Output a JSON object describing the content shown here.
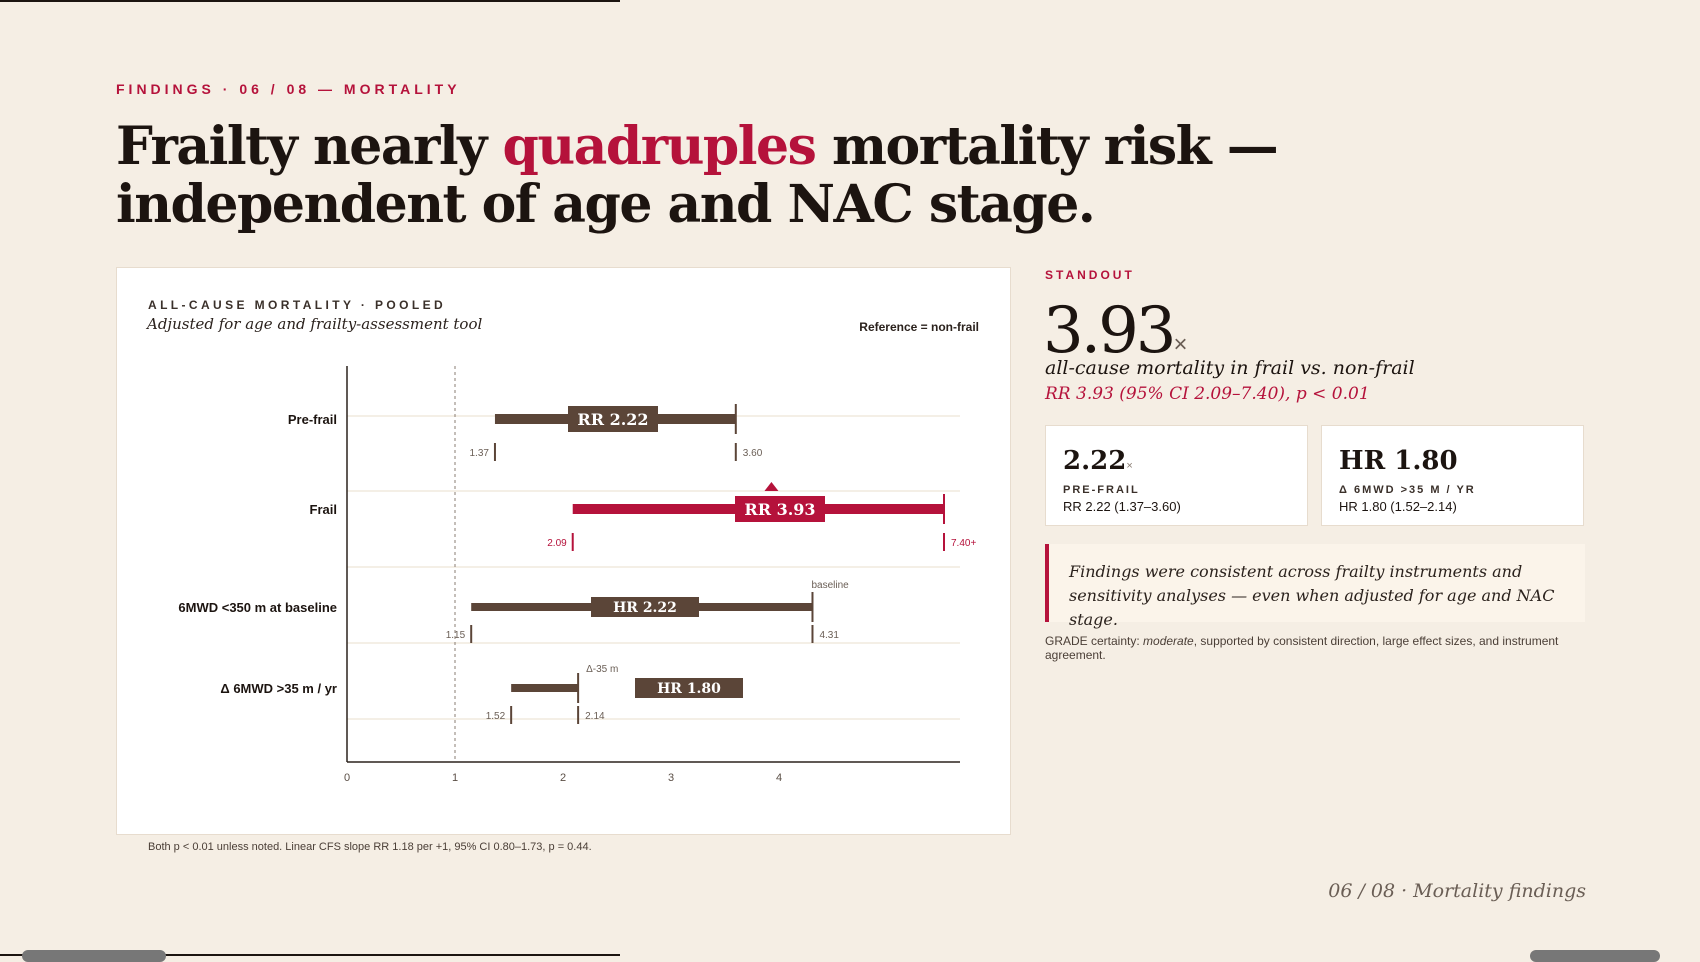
{
  "header": {
    "eyebrow": "FINDINGS · 06 / 08 — MORTALITY",
    "title_part1": "Frailty nearly ",
    "title_accent": "quadruples",
    "title_part2": " mortality risk —",
    "title_line2": "independent of age and NAC stage."
  },
  "chart_card": {
    "eyebrow": "ALL-CAUSE MORTALITY · POOLED",
    "subtitle": "Adjusted for age and frailty-assessment tool",
    "reference": "Reference = non-frail"
  },
  "chart_data": {
    "type": "forest",
    "x_ticks": [
      0,
      1,
      2,
      3,
      4
    ],
    "xlim": [
      0,
      5.5
    ],
    "reference_line": 1,
    "rows": [
      {
        "label": "Pre-frail",
        "measure": "RR",
        "estimate": 2.22,
        "ci_low": 1.37,
        "ci_high": 3.6,
        "estimate_text": "RR 2.22",
        "low_text": "1.37",
        "high_text": "3.60",
        "color": "#5b4538",
        "annotation": ""
      },
      {
        "label": "Frail",
        "measure": "RR",
        "estimate": 3.93,
        "ci_low": 2.09,
        "ci_high": 7.4,
        "ci_high_truncated": true,
        "estimate_text": "RR 3.93",
        "low_text": "2.09",
        "high_text": "7.40+",
        "color": "#b5123b",
        "annotation": ""
      },
      {
        "label": "6MWD <350 m at baseline",
        "measure": "HR",
        "estimate": 2.22,
        "ci_low": 1.15,
        "ci_high": 4.31,
        "estimate_text": "HR 2.22",
        "low_text": "1.15",
        "high_text": "4.31",
        "color": "#5b4538",
        "annotation": "baseline"
      },
      {
        "label": "Δ 6MWD >35 m / yr",
        "measure": "HR",
        "estimate": 1.8,
        "ci_low": 1.52,
        "ci_high": 2.14,
        "estimate_text": "HR 1.80",
        "low_text": "1.52",
        "high_text": "2.14",
        "color": "#5b4538",
        "annotation": "Δ-35 m"
      }
    ],
    "footnote": "Both p < 0.01 unless noted. Linear CFS slope RR 1.18 per +1, 95% CI 0.80–1.73, p = 0.44."
  },
  "standout": {
    "label": "STANDOUT",
    "value": "3.93",
    "unit": "×",
    "description": "all-cause mortality in frail vs. non-frail",
    "stat": "RR 3.93 (95% CI 2.09–7.40), p < 0.01"
  },
  "cards": [
    {
      "value": "2.22",
      "unit": "×",
      "label": "PRE-FRAIL",
      "detail": "RR 2.22 (1.37–3.60)"
    },
    {
      "value": "HR 1.80",
      "unit": "",
      "label": "Δ 6MWD >35 M / YR",
      "detail": "HR 1.80 (1.52–2.14)"
    }
  ],
  "callout": "Findings were consistent across frailty instruments and sensitivity analyses — even when adjusted for age and NAC stage.",
  "grade": {
    "prefix": "GRADE certainty: ",
    "level": "moderate",
    "suffix": ", supported by consistent direction, large effect sizes, and instrument agreement."
  },
  "footer": "06 / 08 · Mortality findings",
  "colors": {
    "accent": "#b5123b",
    "bar": "#5b4538",
    "background": "#f5eee4"
  }
}
